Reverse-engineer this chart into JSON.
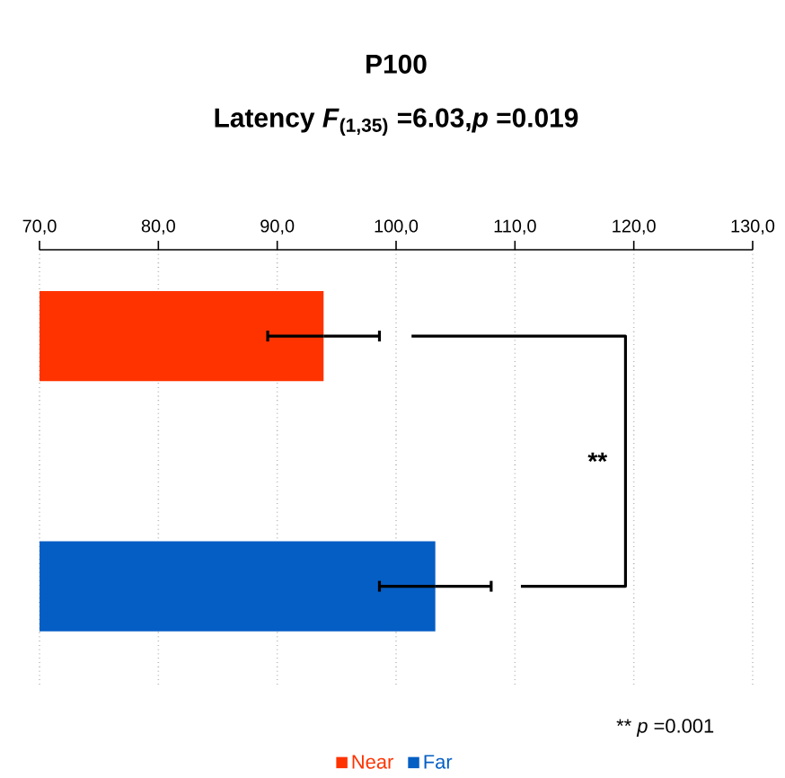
{
  "chart_data": {
    "type": "bar",
    "orientation": "horizontal",
    "title": "P100",
    "subtitle": "Latency *F*$_{(1,35)}$ =6.03,*p* =0.019",
    "categories": [
      null,
      null
    ],
    "series": [
      {
        "name": "Near",
        "color": "#ff3300",
        "values": [
          93.9,
          null
        ],
        "errors": [
          4.7,
          null
        ]
      },
      {
        "name": "Far",
        "color": "#055ec4",
        "values": [
          null,
          103.3
        ],
        "errors": [
          null,
          4.7
        ]
      }
    ],
    "xlim": [
      70,
      130
    ],
    "xticks": [
      {
        "value": 70,
        "label": "70,0"
      },
      {
        "value": 80,
        "label": "80,0"
      },
      {
        "value": 90,
        "label": "90,0"
      },
      {
        "value": 100,
        "label": "100,0"
      },
      {
        "value": 110,
        "label": "110,0"
      },
      {
        "value": 120,
        "label": "120,0"
      },
      {
        "value": 130,
        "label": "130,0"
      }
    ],
    "grid": "x",
    "legend": "bottom",
    "annotations": [
      "**",
      "** *p* =0.001"
    ]
  }
}
